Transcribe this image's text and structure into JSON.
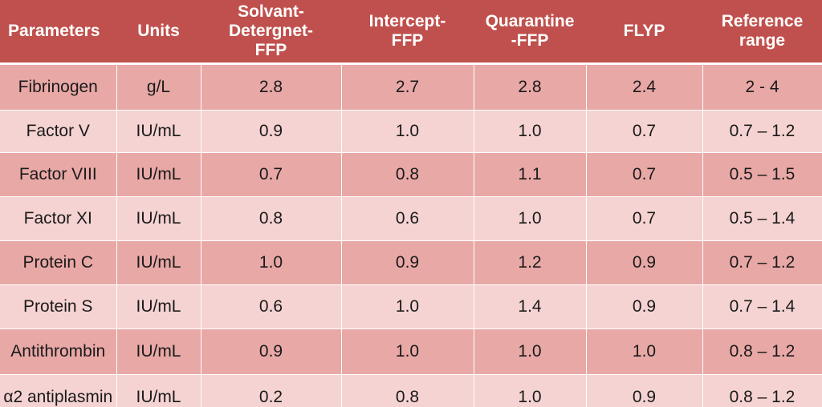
{
  "table": {
    "headers": [
      "Parameters",
      "Units",
      "Solvant-\nDetergnet-\nFFP",
      "Intercept-\nFFP",
      "Quarantine\n-FFP",
      "FLYP",
      "Reference\nrange"
    ],
    "rows": [
      [
        "Fibrinogen",
        "g/L",
        "2.8",
        "2.7",
        "2.8",
        "2.4",
        "2 - 4"
      ],
      [
        "Factor V",
        "IU/mL",
        "0.9",
        "1.0",
        "1.0",
        "0.7",
        "0.7 – 1.2"
      ],
      [
        "Factor VIII",
        "IU/mL",
        "0.7",
        "0.8",
        "1.1",
        "0.7",
        "0.5 – 1.5"
      ],
      [
        "Factor XI",
        "IU/mL",
        "0.8",
        "0.6",
        "1.0",
        "0.7",
        "0.5 – 1.4"
      ],
      [
        "Protein C",
        "IU/mL",
        "1.0",
        "0.9",
        "1.2",
        "0.9",
        "0.7 – 1.2"
      ],
      [
        "Protein S",
        "IU/mL",
        "0.6",
        "1.0",
        "1.4",
        "0.9",
        "0.7 – 1.4"
      ],
      [
        "Antithrombin",
        "IU/mL",
        "0.9",
        "1.0",
        "1.0",
        "1.0",
        "0.8 – 1.2"
      ],
      [
        "α2 antiplasmin",
        "IU/mL",
        "0.2",
        "0.8",
        "1.0",
        "0.9",
        "0.8 – 1.2"
      ]
    ]
  },
  "colors": {
    "header_bg": "#c0504d",
    "row_dark": "#e8a8a6",
    "row_light": "#f5d3d2"
  }
}
